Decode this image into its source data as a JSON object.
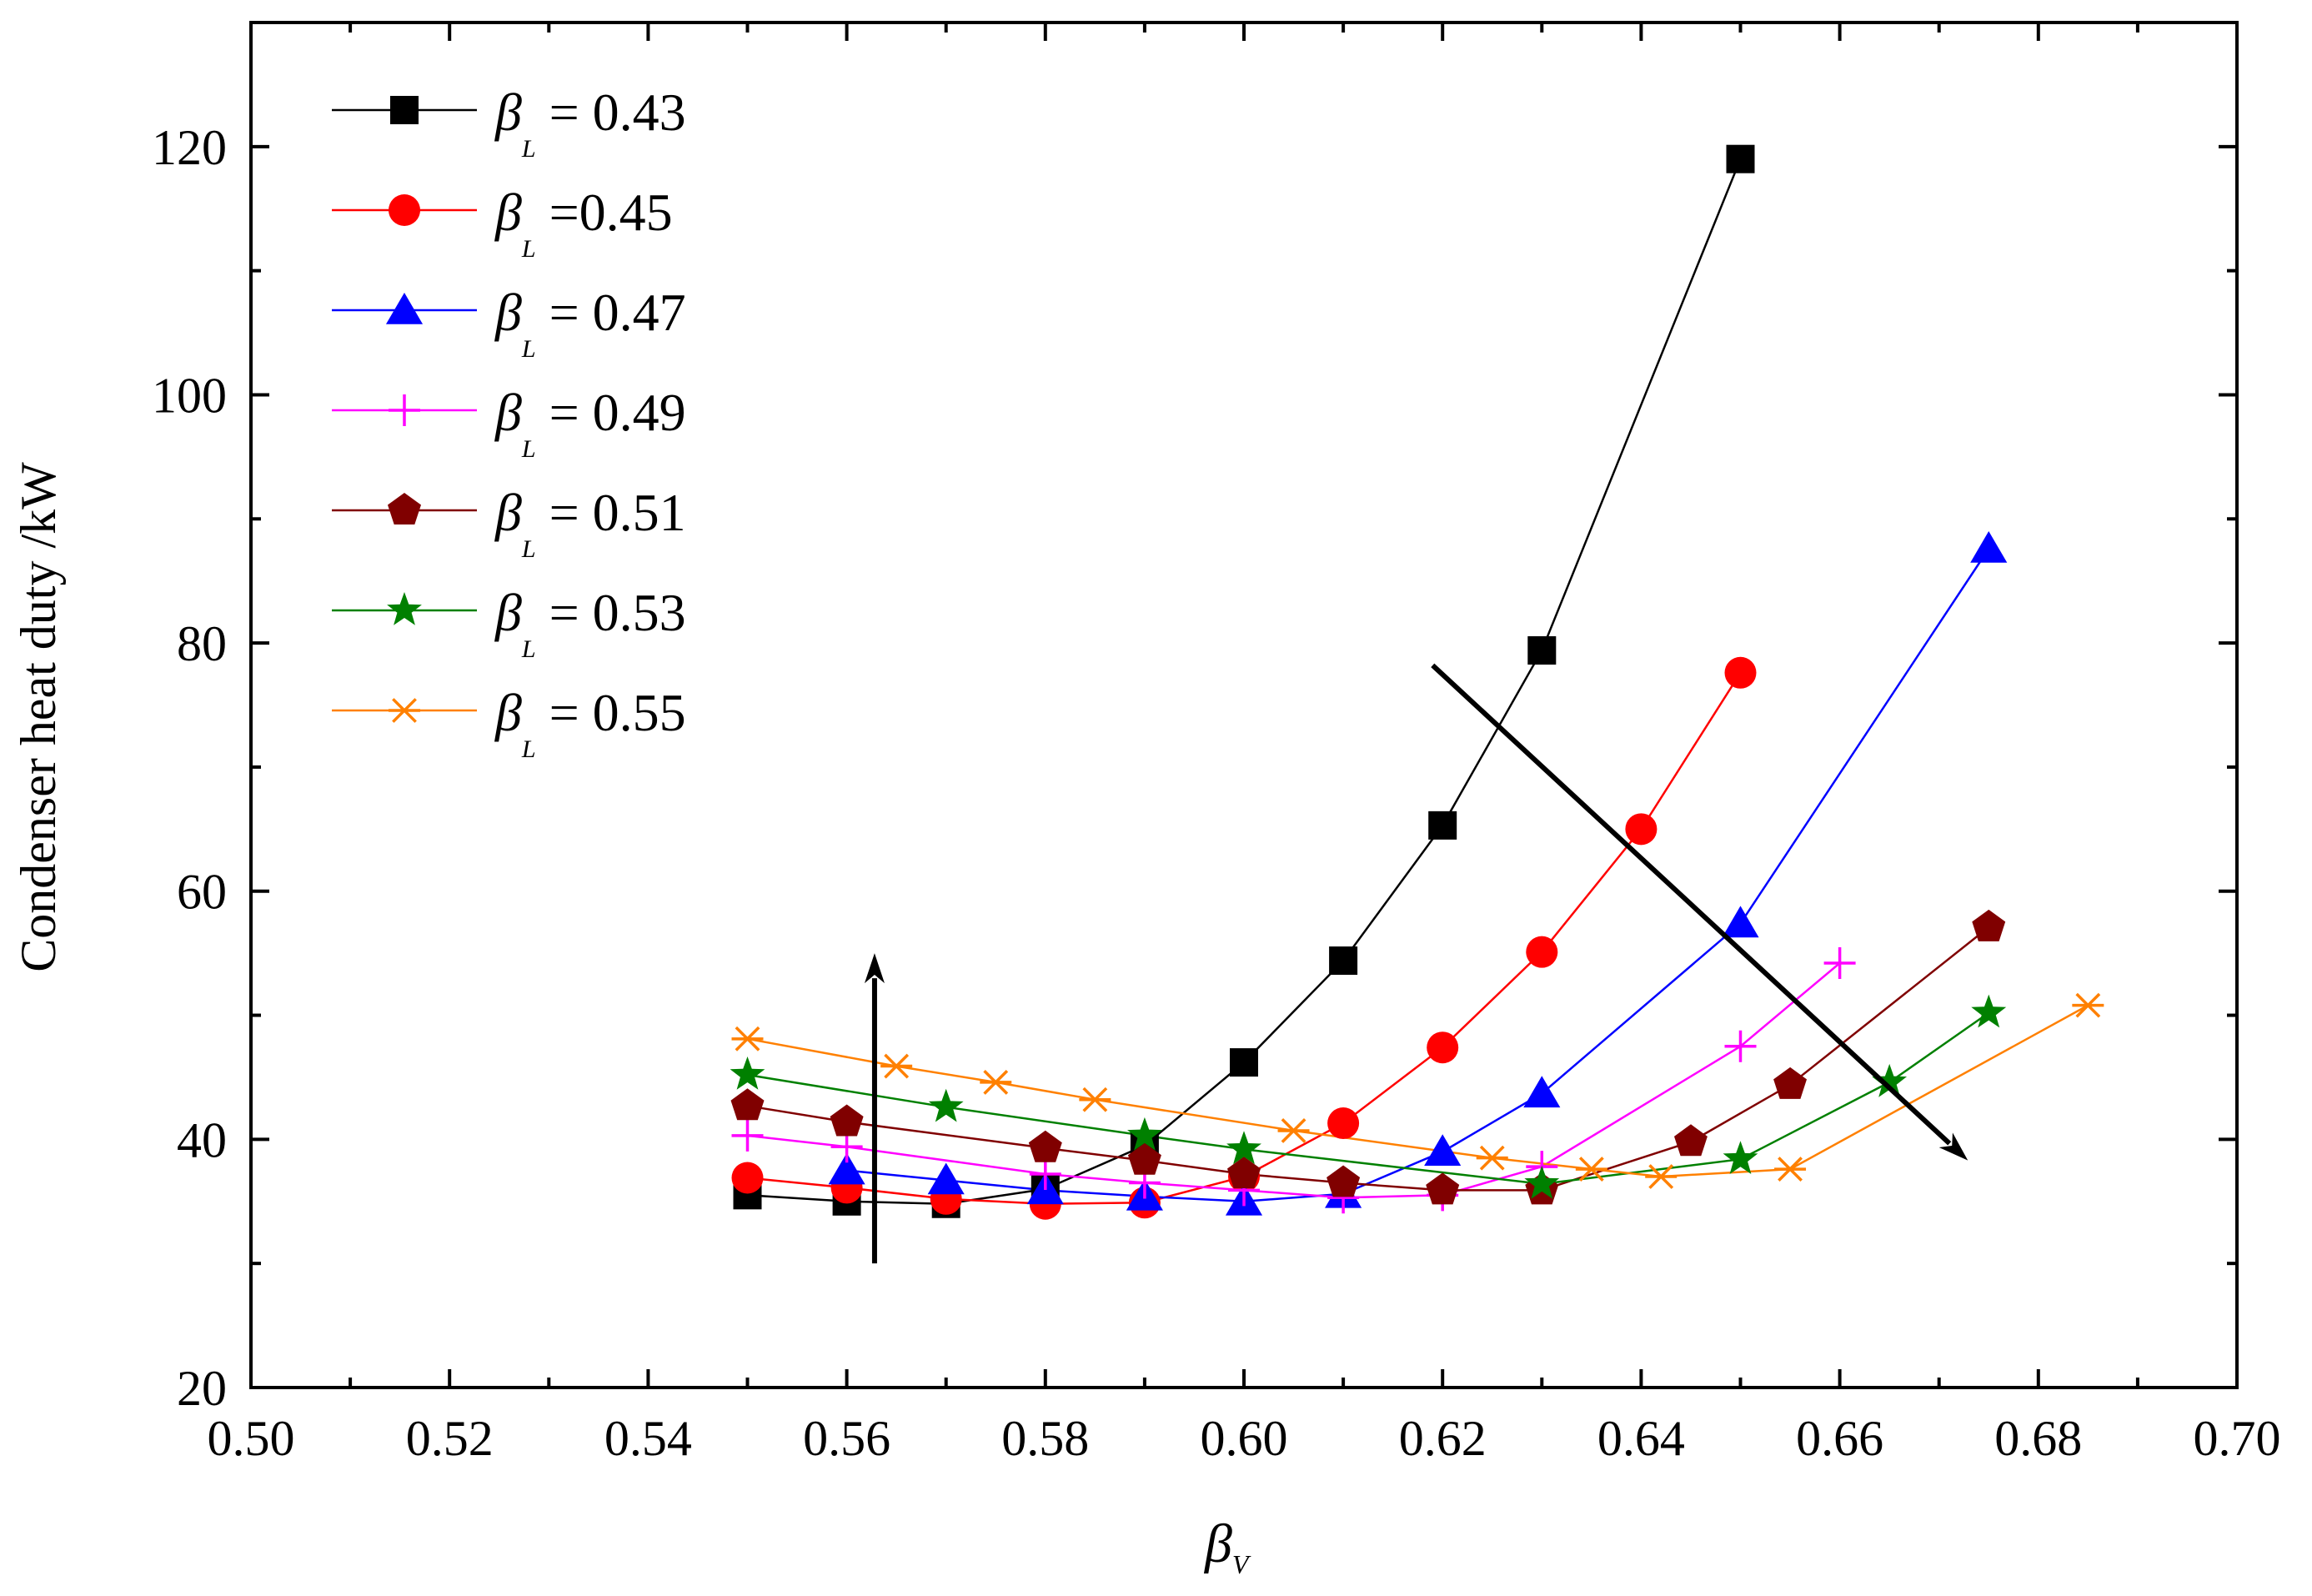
{
  "chart_data": {
    "type": "line",
    "title": "",
    "xlabel_symbol": "β",
    "xlabel_sub": "V",
    "ylabel": "Condenser heat duty /kW",
    "xlim": [
      0.5,
      0.7
    ],
    "ylim": [
      20,
      130
    ],
    "x_ticks": [
      "0.50",
      "0.52",
      "0.54",
      "0.56",
      "0.58",
      "0.60",
      "0.62",
      "0.64",
      "0.66",
      "0.68",
      "0.70"
    ],
    "y_ticks": [
      "20",
      "40",
      "60",
      "80",
      "100",
      "120"
    ],
    "legend_position": "top-left",
    "series": [
      {
        "name": "β_L = 0.43",
        "sym": "β",
        "sub": "L",
        "label": " = 0.43",
        "color": "#000000",
        "marker": "square",
        "x": [
          0.55,
          0.56,
          0.57,
          0.58,
          0.59,
          0.6,
          0.61,
          0.62,
          0.63,
          0.65
        ],
        "y": [
          35.5,
          35.0,
          34.8,
          36.0,
          39.5,
          46.2,
          54.4,
          65.3,
          79.4,
          119.0
        ]
      },
      {
        "name": "β_L = 0.45",
        "sym": "β",
        "sub": "L",
        "label": " =0.45",
        "color": "#ff0000",
        "marker": "circle",
        "x": [
          0.55,
          0.56,
          0.57,
          0.58,
          0.59,
          0.6,
          0.61,
          0.62,
          0.63,
          0.64,
          0.65
        ],
        "y": [
          36.9,
          36.1,
          35.2,
          34.8,
          34.9,
          37.0,
          41.3,
          47.4,
          55.1,
          65.0,
          77.6
        ]
      },
      {
        "name": "β_L = 0.47",
        "sym": "β",
        "sub": "L",
        "label": " = 0.47",
        "color": "#0000ff",
        "marker": "triangle",
        "x": [
          0.56,
          0.57,
          0.58,
          0.59,
          0.6,
          0.61,
          0.62,
          0.63,
          0.65,
          0.675
        ],
        "y": [
          37.5,
          36.7,
          35.9,
          35.4,
          35.0,
          35.6,
          39.0,
          43.7,
          57.4,
          87.6
        ]
      },
      {
        "name": "β_L = 0.49",
        "sym": "β",
        "sub": "L",
        "label": " = 0.49",
        "color": "#ff00ff",
        "marker": "plus",
        "x": [
          0.55,
          0.56,
          0.58,
          0.59,
          0.6,
          0.61,
          0.62,
          0.63,
          0.65,
          0.66
        ],
        "y": [
          40.3,
          39.4,
          37.2,
          36.5,
          35.9,
          35.3,
          35.5,
          37.8,
          47.5,
          54.2
        ]
      },
      {
        "name": "β_L = 0.51",
        "sym": "β",
        "sub": "L",
        "label": " = 0.51",
        "color": "#800000",
        "marker": "pentagon",
        "x": [
          0.55,
          0.56,
          0.58,
          0.59,
          0.6,
          0.61,
          0.62,
          0.63,
          0.645,
          0.655,
          0.675
        ],
        "y": [
          42.7,
          41.4,
          39.3,
          38.3,
          37.2,
          36.5,
          35.9,
          35.9,
          39.8,
          44.4,
          57.1
        ]
      },
      {
        "name": "β_L = 0.53",
        "sym": "β",
        "sub": "L",
        "label": " = 0.53",
        "color": "#008000",
        "marker": "star",
        "x": [
          0.55,
          0.57,
          0.59,
          0.6,
          0.63,
          0.65,
          0.665,
          0.675
        ],
        "y": [
          45.2,
          42.6,
          40.3,
          39.2,
          36.4,
          38.4,
          44.6,
          50.2
        ]
      },
      {
        "name": "β_L = 0.55",
        "sym": "β",
        "sub": "L",
        "label": " = 0.55",
        "color": "#ff8000",
        "marker": "asterisk",
        "x": [
          0.55,
          0.565,
          0.575,
          0.585,
          0.605,
          0.625,
          0.635,
          0.642,
          0.655,
          0.685
        ],
        "y": [
          48.1,
          45.9,
          44.6,
          43.2,
          40.7,
          38.5,
          37.6,
          37.0,
          37.6,
          50.8
        ]
      }
    ],
    "annotations": [
      {
        "type": "arrow",
        "from": [
          0.5628,
          30.0
        ],
        "to": [
          0.5628,
          55.0
        ],
        "color": "#000000"
      },
      {
        "type": "arrow",
        "from": [
          0.619,
          78.2
        ],
        "to": [
          0.6729,
          38.3
        ],
        "color": "#000000"
      }
    ]
  }
}
